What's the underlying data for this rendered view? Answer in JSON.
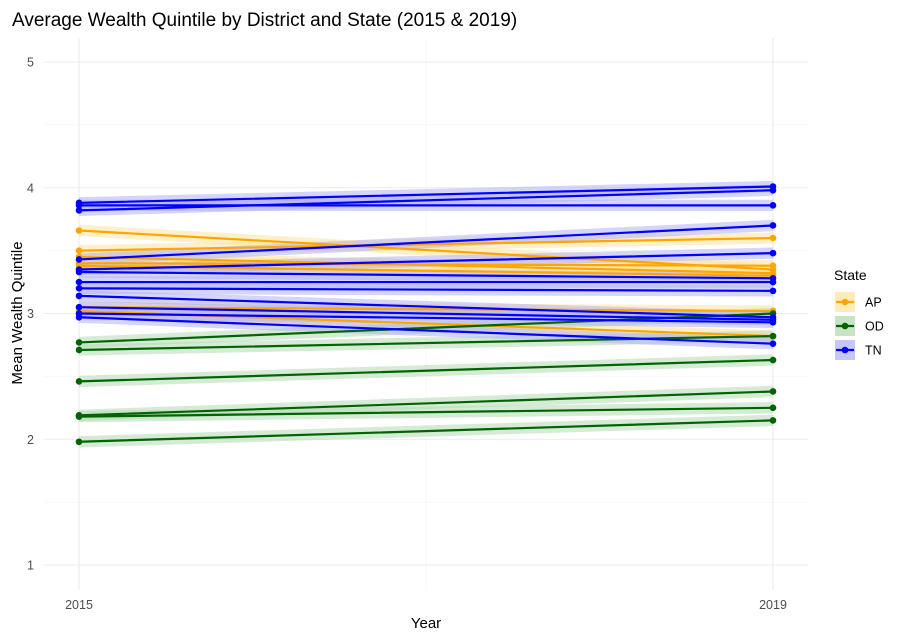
{
  "chart_data": {
    "type": "line",
    "title": "Average Wealth Quintile by District and State (2015 & 2019)",
    "xlabel": "Year",
    "ylabel": "Mean Wealth Quintile",
    "x": [
      2015,
      2019
    ],
    "x_ticks": [
      "2015",
      "2019"
    ],
    "y_ticks": [
      "1",
      "2",
      "3",
      "4",
      "5"
    ],
    "ylim": [
      1,
      5
    ],
    "grid": true,
    "legend": {
      "title": "State",
      "position": "right",
      "entries": [
        {
          "label": "AP",
          "color": "#FFA500"
        },
        {
          "label": "OD",
          "color": "#006400"
        },
        {
          "label": "TN",
          "color": "#0000FF"
        }
      ]
    },
    "colors": {
      "AP": "#FFA500",
      "OD": "#006400",
      "TN": "#0000FF"
    },
    "band_colors": {
      "AP": "#FFE4A0",
      "OD": "#B5DAB5",
      "TN": "#B3B3F5"
    },
    "series": [
      {
        "group": "AP",
        "values": [
          3.66,
          3.35
        ]
      },
      {
        "group": "AP",
        "values": [
          3.5,
          3.6
        ]
      },
      {
        "group": "AP",
        "values": [
          3.45,
          3.32
        ]
      },
      {
        "group": "AP",
        "values": [
          3.4,
          3.38
        ]
      },
      {
        "group": "AP",
        "values": [
          3.38,
          3.3
        ]
      },
      {
        "group": "AP",
        "values": [
          3.05,
          3.02
        ]
      },
      {
        "group": "AP",
        "values": [
          3.02,
          2.82
        ]
      },
      {
        "group": "OD",
        "values": [
          2.77,
          3.0
        ]
      },
      {
        "group": "OD",
        "values": [
          2.71,
          2.82
        ]
      },
      {
        "group": "OD",
        "values": [
          2.46,
          2.63
        ]
      },
      {
        "group": "OD",
        "values": [
          2.19,
          2.38
        ]
      },
      {
        "group": "OD",
        "values": [
          2.18,
          2.25
        ]
      },
      {
        "group": "OD",
        "values": [
          1.98,
          2.15
        ]
      },
      {
        "group": "TN",
        "values": [
          3.88,
          4.01
        ]
      },
      {
        "group": "TN",
        "values": [
          3.82,
          3.98
        ]
      },
      {
        "group": "TN",
        "values": [
          3.86,
          3.86
        ]
      },
      {
        "group": "TN",
        "values": [
          3.43,
          3.7
        ]
      },
      {
        "group": "TN",
        "values": [
          3.35,
          3.48
        ]
      },
      {
        "group": "TN",
        "values": [
          3.33,
          3.28
        ]
      },
      {
        "group": "TN",
        "values": [
          3.25,
          3.25
        ]
      },
      {
        "group": "TN",
        "values": [
          3.2,
          3.18
        ]
      },
      {
        "group": "TN",
        "values": [
          3.14,
          2.97
        ]
      },
      {
        "group": "TN",
        "values": [
          3.05,
          2.95
        ]
      },
      {
        "group": "TN",
        "values": [
          3.0,
          2.93
        ]
      },
      {
        "group": "TN",
        "values": [
          2.97,
          2.76
        ]
      }
    ]
  }
}
